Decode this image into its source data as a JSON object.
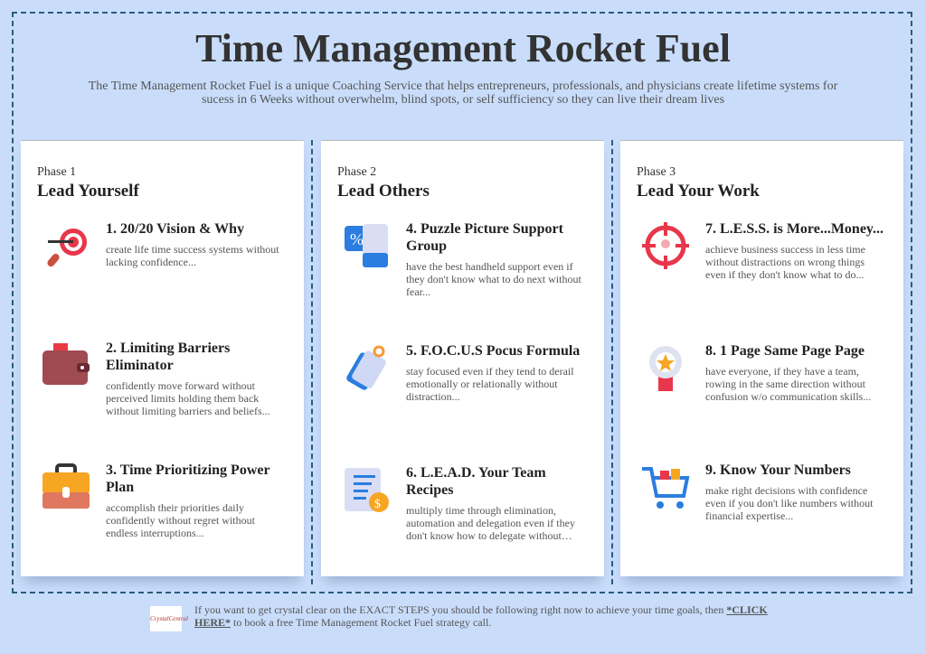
{
  "header": {
    "title": "Time Management Rocket Fuel",
    "subtitle": "The Time Management Rocket Fuel is a unique Coaching Service that helps entrepreneurs, professionals, and physicians create lifetime systems for sucess in 6 Weeks without overwhelm, blind spots, or self sufficiency so they can live their dream lives"
  },
  "phases": [
    {
      "phase": "Phase 1",
      "title": "Lead Yourself",
      "items": [
        {
          "icon": "dart-target-icon",
          "title": "1. 20/20 Vision & Why",
          "desc": "create life time success systems without lacking confidence..."
        },
        {
          "icon": "wallet-icon",
          "title": "2. Limiting Barriers Eliminator",
          "desc": "confidently move forward without perceived limits holding them back without limiting barriers and beliefs..."
        },
        {
          "icon": "briefcase-icon",
          "title": "3. Time Prioritizing Power Plan",
          "desc": "accomplish their priorities daily confidently without regret without endless interruptions..."
        }
      ]
    },
    {
      "phase": "Phase 2",
      "title": "Lead Others",
      "items": [
        {
          "icon": "discount-card-icon",
          "title": "4. Puzzle Picture Support Group",
          "desc": "have the best handheld support even if they don't know what to do next without fear..."
        },
        {
          "icon": "tag-icon",
          "title": "5. F.O.C.U.S Pocus Formula",
          "desc": "stay focused even if they tend to derail emotionally or relationally without distraction..."
        },
        {
          "icon": "invoice-icon",
          "title": "6. L.E.A.D. Your Team Recipes",
          "desc": "multiply time through elimination, automation and delegation even if they don't know how to delegate without…"
        }
      ]
    },
    {
      "phase": "Phase 3",
      "title": "Lead Your Work",
      "items": [
        {
          "icon": "crosshair-icon",
          "title": "7. L.E.S.S. is More...Money...",
          "desc": "achieve business success in less time without distractions on wrong things even if they don't know what to do..."
        },
        {
          "icon": "award-badge-icon",
          "title": "8. 1 Page Same Page Page",
          "desc": "have everyone, if they have a team, rowing in the same direction without confusion w/o communication skills..."
        },
        {
          "icon": "shopping-cart-icon",
          "title": "9. Know Your Numbers",
          "desc": "make right decisions with confidence even if you don't like numbers without financial expertise..."
        }
      ]
    }
  ],
  "footer": {
    "logo": "CrystalCentral",
    "text_before": "If you want to get crystal clear on the EXACT STEPS you should be following right now to achieve your time goals, then ",
    "link": "*CLICK HERE*",
    "text_after": " to book a free Time Management Rocket Fuel strategy call."
  }
}
